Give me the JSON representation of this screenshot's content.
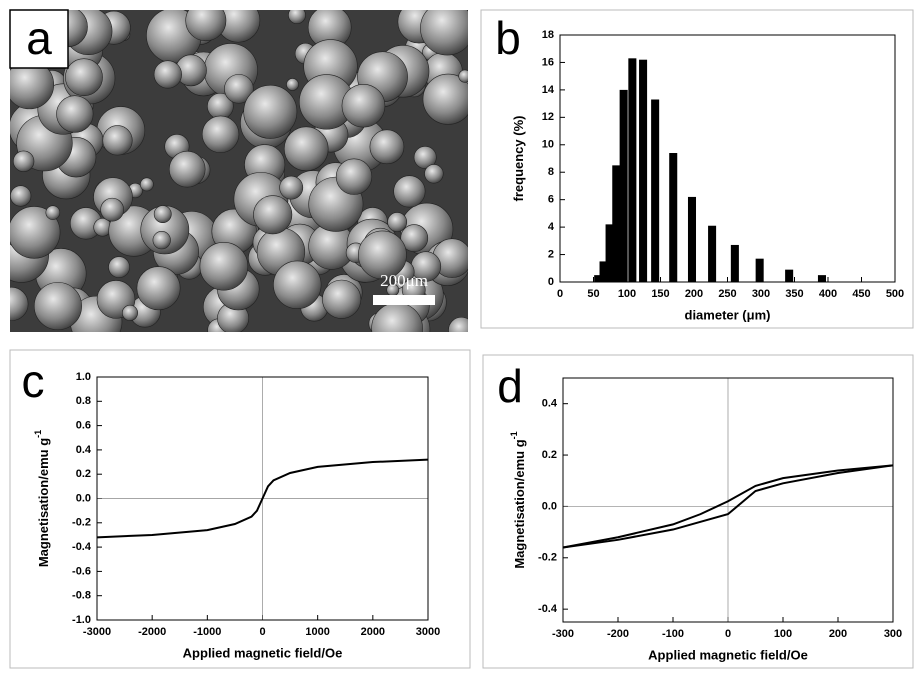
{
  "image_panel": {
    "label": "a",
    "scale_bar": "200μm"
  },
  "chart_data": [
    {
      "type": "bar",
      "panel_label": "b",
      "xlabel": "diameter (μm)",
      "ylabel": "frequency (%)",
      "x": [
        57,
        65,
        74,
        84,
        95,
        108,
        124,
        142,
        169,
        197,
        227,
        261,
        298,
        342,
        391
      ],
      "values": [
        0.5,
        1.5,
        4.2,
        8.5,
        14,
        16.3,
        16.2,
        13.3,
        9.4,
        6.2,
        4.1,
        2.7,
        1.7,
        0.9,
        0.5
      ],
      "bar_width": 12,
      "color": "#000000",
      "xlim": [
        0,
        500
      ],
      "xticks": [
        0,
        50,
        100,
        150,
        200,
        250,
        300,
        350,
        400,
        450,
        500
      ],
      "ylim": [
        0,
        18
      ],
      "yticks": [
        0,
        2,
        4,
        6,
        8,
        10,
        12,
        14,
        16,
        18
      ]
    },
    {
      "type": "line",
      "panel_label": "c",
      "xlabel": "Applied magnetic field/Oe",
      "ylabel": "Magnetisation/emu g",
      "ylabel_sup": "-1",
      "series": [
        {
          "color": "#000000",
          "x": [
            -3000,
            -2000,
            -1000,
            -500,
            -200,
            -100,
            0,
            100,
            200,
            500,
            1000,
            2000,
            3000
          ],
          "values": [
            -0.32,
            -0.3,
            -0.26,
            -0.21,
            -0.15,
            -0.1,
            0.0,
            0.1,
            0.15,
            0.21,
            0.26,
            0.3,
            0.32
          ]
        }
      ],
      "xlim": [
        -3000,
        3000
      ],
      "xticks": [
        -3000,
        -2000,
        -1000,
        0,
        1000,
        2000,
        3000
      ],
      "ylim": [
        -1,
        1
      ],
      "yticks": [
        {
          "value": -1,
          "label": "-1.0"
        },
        -0.8,
        -0.6,
        -0.4,
        -0.2,
        {
          "value": 0,
          "label": "0.0"
        },
        0.2,
        0.4,
        0.6,
        0.8,
        {
          "value": 1,
          "label": "1.0"
        }
      ]
    },
    {
      "type": "line",
      "panel_label": "d",
      "xlabel": "Applied magnetic field/Oe",
      "ylabel": "Magnetisation/emu g",
      "ylabel_sup": "-1",
      "series": [
        {
          "color": "#000000",
          "x": [
            300,
            200,
            100,
            50,
            0,
            -50,
            -100,
            -200,
            -300
          ],
          "values": [
            0.16,
            0.14,
            0.11,
            0.08,
            0.02,
            -0.03,
            -0.07,
            -0.12,
            -0.16
          ]
        },
        {
          "color": "#000000",
          "x": [
            -300,
            -200,
            -100,
            -50,
            0,
            50,
            100,
            200,
            300
          ],
          "values": [
            -0.16,
            -0.13,
            -0.09,
            -0.06,
            -0.03,
            0.06,
            0.09,
            0.13,
            0.16
          ]
        }
      ],
      "xlim": [
        -300,
        300
      ],
      "xticks": [
        -300,
        -200,
        -100,
        0,
        100,
        200,
        300
      ],
      "ylim": [
        -0.45,
        0.5
      ],
      "yticks": [
        -0.4,
        -0.2,
        {
          "value": 0,
          "label": "0.0"
        },
        0.2,
        0.4
      ]
    }
  ]
}
